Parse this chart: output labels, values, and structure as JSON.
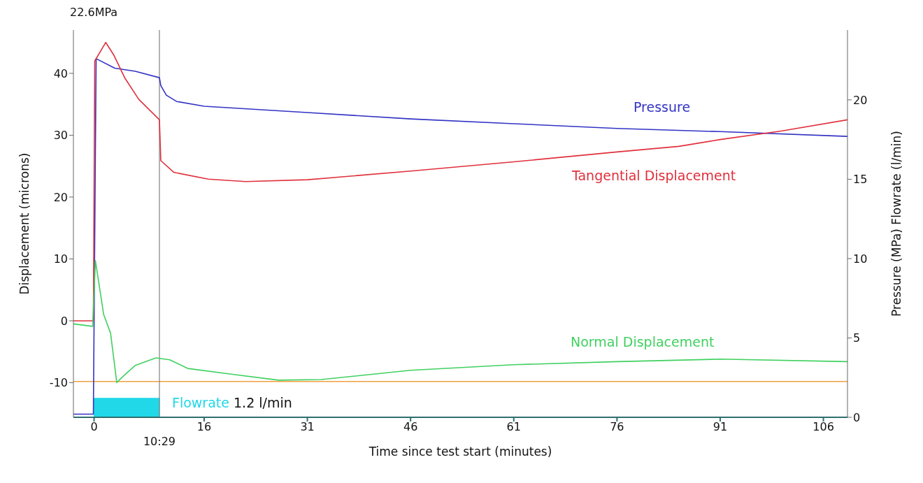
{
  "chart_data": {
    "type": "line",
    "xlabel": "Time since test start (minutes)",
    "ylabel": "Displacement (microns)",
    "y2label": "Pressure (MPa) Flowrate (l/min)",
    "xlim": [
      -3,
      109.5
    ],
    "xticks": [
      0,
      16,
      31,
      46,
      61,
      76,
      91,
      106
    ],
    "ylim": [
      -15.6,
      47
    ],
    "yticks": [
      -10,
      0,
      10,
      20,
      30,
      40
    ],
    "y2lim": [
      0,
      24.4
    ],
    "y2ticks": [
      0,
      5,
      10,
      15,
      20
    ],
    "series": [
      {
        "name": "Pressure",
        "color": "#3333c4",
        "axis": "y2",
        "x": [
          -3,
          -0.1,
          0.3,
          3,
          6,
          9.5,
          9.7,
          10.5,
          12,
          16,
          31,
          46,
          61,
          76,
          91,
          109.5
        ],
        "values": [
          0.2,
          0.2,
          22.6,
          22.0,
          21.8,
          21.4,
          20.9,
          20.3,
          19.9,
          19.6,
          19.2,
          18.8,
          18.5,
          18.2,
          18.0,
          17.7
        ]
      },
      {
        "name": "Tangential Displacement",
        "color": "#e0303c",
        "x": [
          -3,
          -0.1,
          0.1,
          1.7,
          2.9,
          4.5,
          6.5,
          9.5,
          9.7,
          11.6,
          16.6,
          22,
          31,
          46,
          61,
          76,
          85,
          91,
          100,
          109.5
        ],
        "values": [
          0,
          0,
          42,
          45,
          42.9,
          39.2,
          35.8,
          32.5,
          25.9,
          24.0,
          22.9,
          22.5,
          22.8,
          24.2,
          25.7,
          27.3,
          28.2,
          29.3,
          30.7,
          32.5
        ]
      },
      {
        "name": "Normal Displacement",
        "color": "#40d060",
        "x": [
          -3,
          -0.2,
          0.2,
          1.4,
          2.4,
          3.3,
          4,
          6,
          9,
          11,
          13.6,
          19.7,
          26.8,
          33,
          46,
          61,
          76,
          91,
          109.5
        ],
        "values": [
          -0.5,
          -0.9,
          9.7,
          1.0,
          -2,
          -10,
          -9.2,
          -7.2,
          -6,
          -6.3,
          -7.7,
          -8.6,
          -9.6,
          -9.5,
          -8,
          -7.1,
          -6.6,
          -6.2,
          -6.6
        ]
      },
      {
        "name": "Flowrate",
        "type": "area",
        "color": "#20d8e8",
        "axis": "y2",
        "x": [
          -3,
          0,
          0,
          9.5,
          9.5,
          109.5
        ],
        "values": [
          0,
          0,
          1.2,
          1.2,
          0,
          0
        ]
      }
    ],
    "ref_lines": [
      {
        "axis": "y",
        "value": -9.8,
        "label": null,
        "color": "#f0a040"
      },
      {
        "axis": "x",
        "value": 9.5,
        "label": "10:29",
        "color": "#808080"
      }
    ],
    "annotations": [
      "22.6MPa",
      "1.2 l/min"
    ]
  }
}
